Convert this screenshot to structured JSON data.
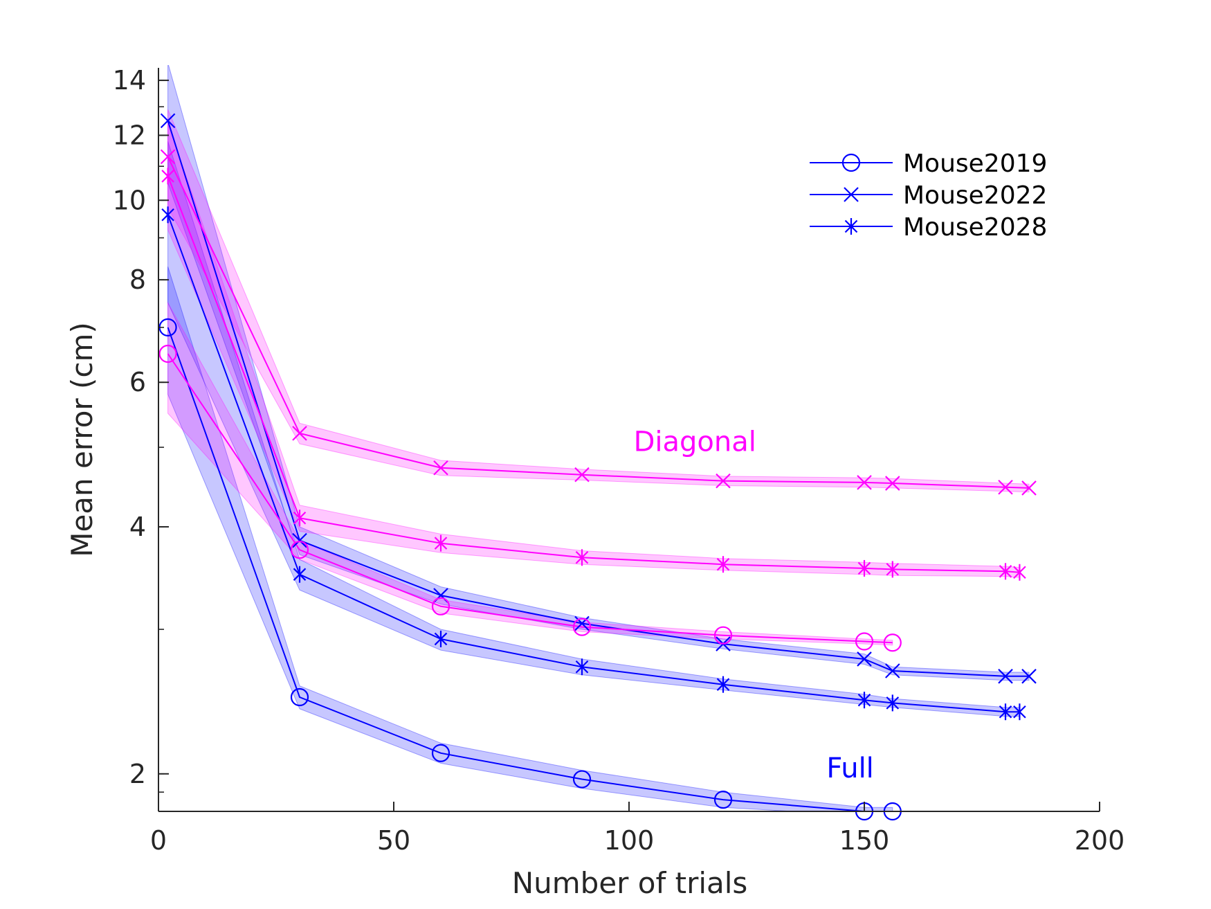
{
  "chart_data": {
    "type": "line",
    "xlabel": "Number of trials",
    "ylabel": "Mean error (cm)",
    "xlim": [
      0,
      200
    ],
    "ylim": [
      1.8,
      14.5
    ],
    "yscale": "log",
    "xticks": [
      0,
      50,
      100,
      150,
      200
    ],
    "xtick_labels": [
      "0",
      "50",
      "100",
      "150",
      "200"
    ],
    "yticks": [
      2,
      4,
      6,
      8,
      10,
      12,
      14
    ],
    "ytick_labels": [
      "2",
      "4",
      "6",
      "8",
      "10",
      "12",
      "14"
    ],
    "legend": {
      "position": "top-right",
      "entries": [
        {
          "name": "Mouse2019",
          "marker": "circle"
        },
        {
          "name": "Mouse2022",
          "marker": "x"
        },
        {
          "name": "Mouse2028",
          "marker": "asterisk"
        }
      ]
    },
    "annotations": [
      {
        "text": "Diagonal",
        "x": 114,
        "y": 4.95,
        "color": "#ff00ff"
      },
      {
        "text": "Full",
        "x": 147,
        "y": 1.98,
        "color": "#0000ff"
      }
    ],
    "series": [
      {
        "name": "Mouse2019",
        "group": "Full",
        "color": "#0000ff",
        "marker": "circle",
        "x": [
          2,
          30,
          60,
          90,
          120,
          150,
          156
        ],
        "y": [
          7.0,
          2.48,
          2.12,
          1.97,
          1.86,
          1.8,
          1.8
        ],
        "lower": [
          5.8,
          2.4,
          2.06,
          1.92,
          1.82,
          1.78,
          1.78
        ],
        "upper": [
          8.3,
          2.56,
          2.18,
          2.02,
          1.9,
          1.82,
          1.82
        ]
      },
      {
        "name": "Mouse2022",
        "group": "Full",
        "color": "#0000ff",
        "marker": "x",
        "x": [
          2,
          30,
          60,
          90,
          120,
          150,
          156,
          180,
          185
        ],
        "y": [
          12.5,
          3.85,
          3.3,
          3.05,
          2.88,
          2.76,
          2.67,
          2.63,
          2.63
        ],
        "lower": [
          10.5,
          3.7,
          3.22,
          3.0,
          2.84,
          2.72,
          2.64,
          2.6,
          2.6
        ],
        "upper": [
          14.7,
          4.0,
          3.38,
          3.1,
          2.92,
          2.8,
          2.7,
          2.66,
          2.66
        ]
      },
      {
        "name": "Mouse2028",
        "group": "Full",
        "color": "#0000ff",
        "marker": "asterisk",
        "x": [
          2,
          30,
          60,
          90,
          120,
          150,
          156,
          180,
          183
        ],
        "y": [
          9.6,
          3.5,
          2.92,
          2.7,
          2.57,
          2.46,
          2.44,
          2.38,
          2.38
        ],
        "lower": [
          7.5,
          3.35,
          2.83,
          2.64,
          2.53,
          2.43,
          2.41,
          2.35,
          2.35
        ],
        "upper": [
          11.8,
          3.65,
          3.0,
          2.76,
          2.61,
          2.5,
          2.47,
          2.41,
          2.41
        ]
      },
      {
        "name": "Mouse2019",
        "group": "Diagonal",
        "color": "#ff00ff",
        "marker": "circle",
        "x": [
          2,
          30,
          60,
          90,
          120,
          150,
          156
        ],
        "y": [
          6.5,
          3.75,
          3.2,
          3.02,
          2.95,
          2.9,
          2.89
        ],
        "lower": [
          5.5,
          3.65,
          3.14,
          2.98,
          2.92,
          2.88,
          2.87
        ],
        "upper": [
          7.5,
          3.85,
          3.26,
          3.06,
          2.98,
          2.92,
          2.91
        ]
      },
      {
        "name": "Mouse2022",
        "group": "Diagonal",
        "color": "#ff00ff",
        "marker": "x",
        "x": [
          2,
          30,
          60,
          90,
          120,
          150,
          156,
          180,
          185
        ],
        "y": [
          11.3,
          5.2,
          4.72,
          4.63,
          4.55,
          4.53,
          4.52,
          4.47,
          4.46
        ],
        "lower": [
          9.8,
          5.05,
          4.62,
          4.56,
          4.49,
          4.47,
          4.46,
          4.42,
          4.41
        ],
        "upper": [
          12.9,
          5.35,
          4.82,
          4.7,
          4.61,
          4.59,
          4.58,
          4.52,
          4.51
        ]
      },
      {
        "name": "Mouse2028",
        "group": "Diagonal",
        "color": "#ff00ff",
        "marker": "asterisk",
        "x": [
          2,
          30,
          60,
          90,
          120,
          150,
          156,
          180,
          183
        ],
        "y": [
          10.7,
          4.1,
          3.82,
          3.67,
          3.6,
          3.56,
          3.55,
          3.53,
          3.52
        ],
        "lower": [
          9.2,
          3.95,
          3.72,
          3.6,
          3.54,
          3.5,
          3.49,
          3.48,
          3.47
        ],
        "upper": [
          12.4,
          4.25,
          3.92,
          3.74,
          3.66,
          3.62,
          3.61,
          3.58,
          3.57
        ]
      }
    ]
  }
}
